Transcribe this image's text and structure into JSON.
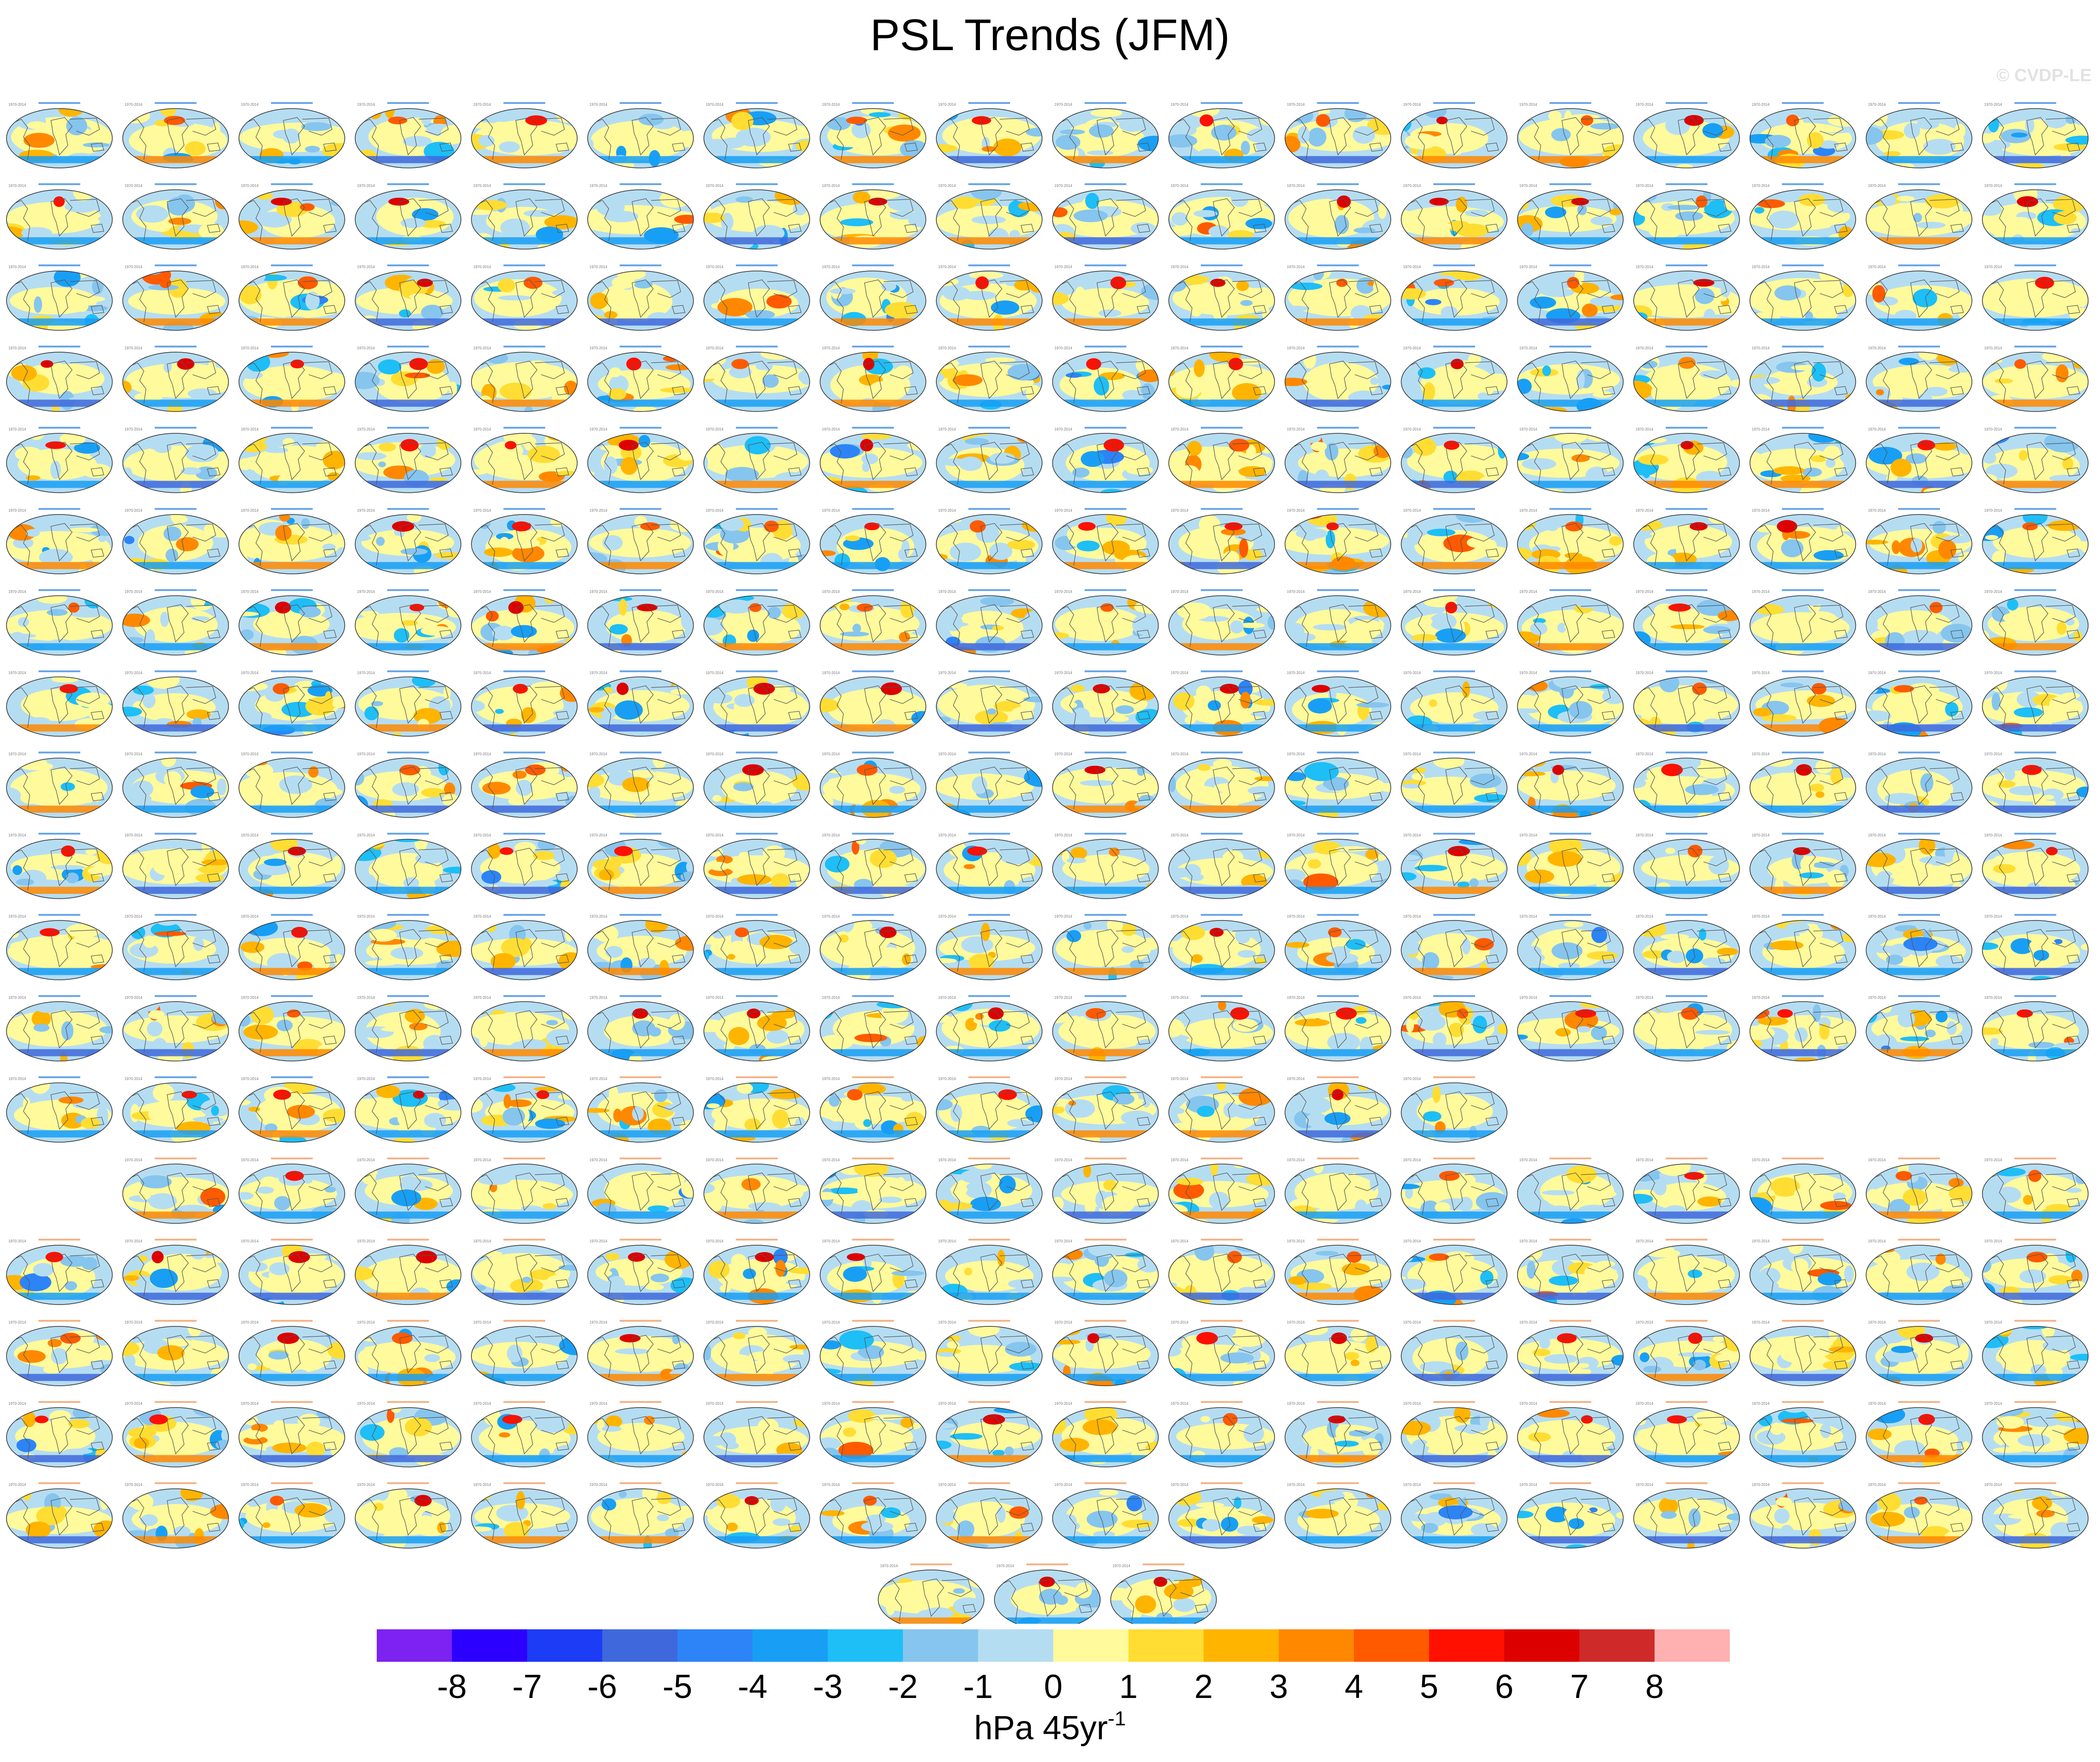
{
  "title": "PSL Trends (JFM)",
  "watermark": "© CVDP-LE",
  "units": {
    "base": "hPa 45yr",
    "exponent": "-1"
  },
  "panel_period": "1970-2014",
  "grid_rows": [
    18,
    18,
    18,
    18,
    18,
    18,
    18,
    18,
    18,
    18,
    18,
    18,
    13,
    17,
    18,
    18,
    18,
    18,
    3
  ],
  "colorbar": {
    "colors": [
      "#7d22f0",
      "#2c00ff",
      "#1c3cf5",
      "#3f68dc",
      "#2c84f7",
      "#189ff5",
      "#1ebef7",
      "#86c5ee",
      "#b5ddf2",
      "#fffa9b",
      "#ffdd33",
      "#ffb400",
      "#ff8800",
      "#ff5a00",
      "#ff1000",
      "#dd0000",
      "#cf2a2a",
      "#ffb0b0"
    ],
    "labels": [
      "-8",
      "-7",
      "-6",
      "-5",
      "-4",
      "-3",
      "-2",
      "-1",
      "0",
      "1",
      "2",
      "3",
      "4",
      "5",
      "6",
      "7",
      "8"
    ]
  },
  "chart_data": {
    "type": "heatmap",
    "title": "PSL Trends (JFM)",
    "variable": "PSL",
    "season": "JFM",
    "period": "1970-2014",
    "colorbar_levels": [
      -8,
      -7,
      -6,
      -5,
      -4,
      -3,
      -2,
      -1,
      0,
      1,
      2,
      3,
      4,
      5,
      6,
      7,
      8
    ],
    "colorbar_units": "hPa 45yr-1",
    "panel_count": 310,
    "projection": "global map"
  }
}
